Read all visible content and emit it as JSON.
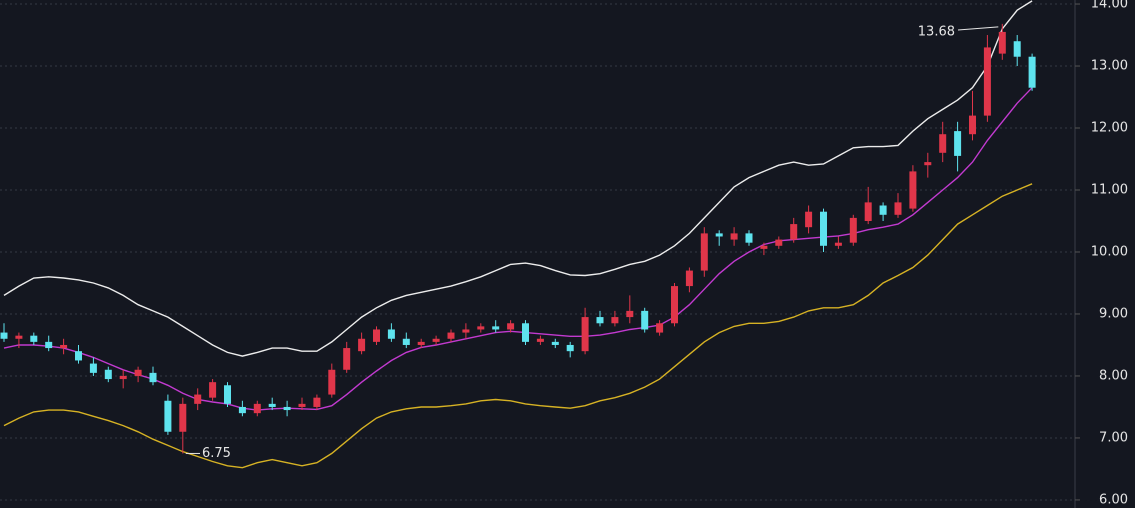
{
  "chart_data": {
    "type": "candlestick",
    "ylim": [
      5.87,
      14.065
    ],
    "yticks": [
      {
        "value": 6,
        "label": "6.00"
      },
      {
        "value": 7,
        "label": "7.00"
      },
      {
        "value": 8,
        "label": "8.00"
      },
      {
        "value": 9,
        "label": "9.00"
      },
      {
        "value": 10,
        "label": "10.00"
      },
      {
        "value": 11,
        "label": "11.00"
      },
      {
        "value": 12,
        "label": "12.00"
      },
      {
        "value": 13,
        "label": "13.00"
      },
      {
        "value": 14,
        "label": "14.00"
      }
    ],
    "grid": true,
    "up_color": "#e0364a",
    "down_color": "#5ee3ee",
    "annotations": [
      "13.68",
      "6.75"
    ],
    "candles": [
      [
        8.7,
        8.85,
        8.55,
        8.6
      ],
      [
        8.6,
        8.7,
        8.45,
        8.65
      ],
      [
        8.65,
        8.7,
        8.5,
        8.55
      ],
      [
        8.55,
        8.65,
        8.4,
        8.45
      ],
      [
        8.45,
        8.6,
        8.35,
        8.5
      ],
      [
        8.4,
        8.5,
        8.2,
        8.25
      ],
      [
        8.2,
        8.3,
        8.0,
        8.05
      ],
      [
        8.1,
        8.15,
        7.9,
        7.95
      ],
      [
        7.95,
        8.1,
        7.8,
        8.0
      ],
      [
        8.0,
        8.15,
        7.9,
        8.1
      ],
      [
        8.05,
        8.15,
        7.85,
        7.9
      ],
      [
        7.6,
        7.7,
        7.05,
        7.1
      ],
      [
        7.1,
        7.65,
        6.75,
        7.55
      ],
      [
        7.55,
        7.8,
        7.45,
        7.7
      ],
      [
        7.65,
        7.95,
        7.6,
        7.9
      ],
      [
        7.85,
        7.9,
        7.5,
        7.55
      ],
      [
        7.5,
        7.6,
        7.35,
        7.4
      ],
      [
        7.4,
        7.6,
        7.35,
        7.55
      ],
      [
        7.55,
        7.65,
        7.45,
        7.5
      ],
      [
        7.5,
        7.6,
        7.35,
        7.45
      ],
      [
        7.5,
        7.65,
        7.45,
        7.55
      ],
      [
        7.5,
        7.7,
        7.45,
        7.65
      ],
      [
        7.7,
        8.2,
        7.65,
        8.1
      ],
      [
        8.1,
        8.55,
        8.05,
        8.45
      ],
      [
        8.4,
        8.7,
        8.35,
        8.6
      ],
      [
        8.55,
        8.8,
        8.5,
        8.75
      ],
      [
        8.75,
        8.85,
        8.55,
        8.6
      ],
      [
        8.6,
        8.7,
        8.45,
        8.5
      ],
      [
        8.5,
        8.6,
        8.45,
        8.55
      ],
      [
        8.55,
        8.65,
        8.5,
        8.6
      ],
      [
        8.6,
        8.75,
        8.55,
        8.7
      ],
      [
        8.7,
        8.85,
        8.6,
        8.75
      ],
      [
        8.75,
        8.85,
        8.7,
        8.8
      ],
      [
        8.8,
        8.9,
        8.7,
        8.75
      ],
      [
        8.75,
        8.9,
        8.7,
        8.85
      ],
      [
        8.85,
        8.9,
        8.5,
        8.55
      ],
      [
        8.55,
        8.65,
        8.5,
        8.6
      ],
      [
        8.55,
        8.6,
        8.45,
        8.5
      ],
      [
        8.5,
        8.55,
        8.3,
        8.4
      ],
      [
        8.4,
        9.1,
        8.35,
        8.95
      ],
      [
        8.95,
        9.05,
        8.8,
        8.85
      ],
      [
        8.85,
        9.05,
        8.8,
        8.95
      ],
      [
        8.95,
        9.3,
        8.85,
        9.05
      ],
      [
        9.05,
        9.1,
        8.7,
        8.75
      ],
      [
        8.7,
        8.9,
        8.65,
        8.85
      ],
      [
        8.85,
        9.5,
        8.8,
        9.45
      ],
      [
        9.45,
        9.75,
        9.35,
        9.7
      ],
      [
        9.7,
        10.4,
        9.6,
        10.3
      ],
      [
        10.3,
        10.35,
        10.1,
        10.25
      ],
      [
        10.2,
        10.4,
        10.1,
        10.3
      ],
      [
        10.3,
        10.35,
        10.1,
        10.15
      ],
      [
        10.05,
        10.15,
        9.95,
        10.1
      ],
      [
        10.1,
        10.25,
        10.05,
        10.2
      ],
      [
        10.2,
        10.55,
        10.15,
        10.45
      ],
      [
        10.4,
        10.75,
        10.3,
        10.65
      ],
      [
        10.65,
        10.7,
        10.0,
        10.1
      ],
      [
        10.1,
        10.25,
        10.05,
        10.15
      ],
      [
        10.15,
        10.6,
        10.1,
        10.55
      ],
      [
        10.5,
        11.05,
        10.45,
        10.8
      ],
      [
        10.75,
        10.8,
        10.5,
        10.6
      ],
      [
        10.6,
        10.95,
        10.55,
        10.8
      ],
      [
        10.7,
        11.4,
        10.65,
        11.3
      ],
      [
        11.4,
        11.6,
        11.2,
        11.45
      ],
      [
        11.6,
        12.1,
        11.45,
        11.9
      ],
      [
        11.95,
        12.1,
        11.3,
        11.55
      ],
      [
        11.9,
        12.6,
        11.8,
        12.2
      ],
      [
        12.2,
        13.5,
        12.1,
        13.3
      ],
      [
        13.2,
        13.68,
        13.1,
        13.55
      ],
      [
        13.4,
        13.5,
        13.0,
        13.15
      ],
      [
        13.15,
        13.2,
        12.6,
        12.65
      ]
    ],
    "lines": [
      {
        "color": "#ececec",
        "values": [
          9.3,
          9.45,
          9.58,
          9.6,
          9.58,
          9.55,
          9.5,
          9.42,
          9.3,
          9.15,
          9.05,
          8.95,
          8.8,
          8.65,
          8.5,
          8.38,
          8.32,
          8.38,
          8.45,
          8.45,
          8.4,
          8.4,
          8.55,
          8.75,
          8.95,
          9.1,
          9.22,
          9.3,
          9.35,
          9.4,
          9.45,
          9.52,
          9.6,
          9.7,
          9.8,
          9.82,
          9.78,
          9.7,
          9.63,
          9.62,
          9.65,
          9.72,
          9.8,
          9.85,
          9.95,
          10.1,
          10.3,
          10.55,
          10.8,
          11.05,
          11.2,
          11.3,
          11.4,
          11.45,
          11.4,
          11.42,
          11.55,
          11.68,
          11.7,
          11.7,
          11.72,
          11.95,
          12.15,
          12.3,
          12.45,
          12.65,
          13.0,
          13.6,
          13.9,
          14.05
        ]
      },
      {
        "color": "#c23ad0",
        "values": [
          8.45,
          8.5,
          8.5,
          8.48,
          8.45,
          8.38,
          8.3,
          8.2,
          8.1,
          8.02,
          7.95,
          7.85,
          7.72,
          7.62,
          7.58,
          7.55,
          7.48,
          7.45,
          7.47,
          7.48,
          7.47,
          7.46,
          7.52,
          7.7,
          7.9,
          8.08,
          8.25,
          8.38,
          8.46,
          8.5,
          8.55,
          8.6,
          8.65,
          8.7,
          8.72,
          8.7,
          8.68,
          8.66,
          8.64,
          8.64,
          8.66,
          8.7,
          8.75,
          8.78,
          8.82,
          8.95,
          9.15,
          9.4,
          9.65,
          9.85,
          10.0,
          10.12,
          10.18,
          10.2,
          10.22,
          10.24,
          10.26,
          10.3,
          10.36,
          10.4,
          10.45,
          10.6,
          10.8,
          11.0,
          11.2,
          11.45,
          11.8,
          12.1,
          12.4,
          12.65
        ]
      },
      {
        "color": "#d6b224",
        "values": [
          7.2,
          7.32,
          7.42,
          7.45,
          7.45,
          7.42,
          7.35,
          7.28,
          7.2,
          7.1,
          6.98,
          6.88,
          6.78,
          6.7,
          6.62,
          6.55,
          6.52,
          6.6,
          6.65,
          6.6,
          6.55,
          6.6,
          6.75,
          6.95,
          7.15,
          7.32,
          7.42,
          7.47,
          7.5,
          7.5,
          7.52,
          7.55,
          7.6,
          7.62,
          7.6,
          7.55,
          7.52,
          7.5,
          7.48,
          7.52,
          7.6,
          7.65,
          7.72,
          7.82,
          7.95,
          8.15,
          8.35,
          8.55,
          8.7,
          8.8,
          8.85,
          8.85,
          8.88,
          8.95,
          9.05,
          9.1,
          9.1,
          9.15,
          9.3,
          9.5,
          9.62,
          9.75,
          9.95,
          10.2,
          10.45,
          10.6,
          10.75,
          10.9,
          11.0,
          11.1
        ]
      }
    ]
  }
}
